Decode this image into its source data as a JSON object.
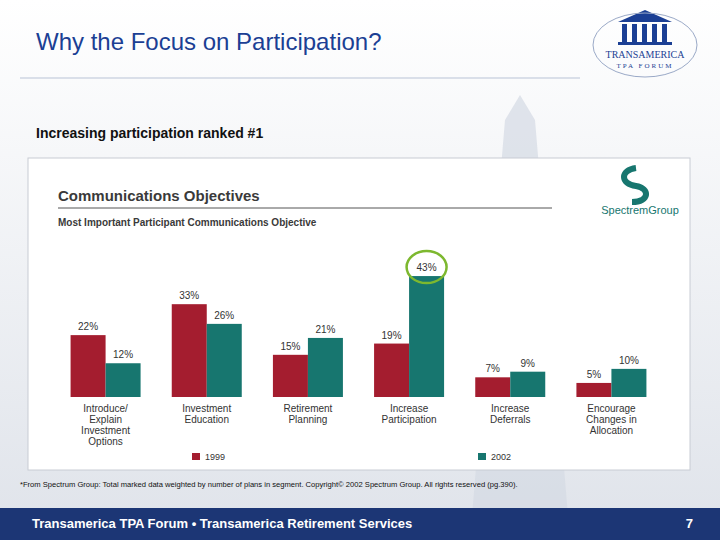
{
  "slide": {
    "title": "Why the Focus on Participation?",
    "subtitle": "Increasing participation ranked #1",
    "logo": [
      "TRANSAMERICA",
      "TPA FORUM"
    ],
    "chart_logo": "SpectremGroup",
    "footnote": "*From Spectrum Group: Total marked data weighted by number of plans in segment. Copyright© 2002 Spectrum Group.  All rights reserved (pg.390).",
    "footer": "Transamerica TPA Forum • Transamerica Retirement Services",
    "page_number": "7"
  },
  "chart_data": {
    "type": "bar",
    "title": "Communications Objectives",
    "subtitle": "Most Important Participant Communications Objective",
    "categories": [
      "Introduce/ Explain Investment Options",
      "Investment Education",
      "Retirement Planning",
      "Increase Participation",
      "Increase Deferrals",
      "Encourage Changes in Allocation"
    ],
    "series": [
      {
        "name": "1999",
        "color": "#a41d2f",
        "values": [
          22,
          33,
          15,
          19,
          7,
          5
        ],
        "value_labels": [
          "22%",
          "33%",
          "15%",
          "19%",
          "7%",
          "5%"
        ]
      },
      {
        "name": "2002",
        "color": "#17766f",
        "values": [
          12,
          26,
          21,
          43,
          9,
          10
        ],
        "value_labels": [
          "12%",
          "26%",
          "21%",
          "43%",
          "9%",
          "10%"
        ]
      }
    ],
    "ylim": [
      0,
      48
    ],
    "data_labels": true,
    "tick_labels": "x",
    "legend": "bottom"
  }
}
